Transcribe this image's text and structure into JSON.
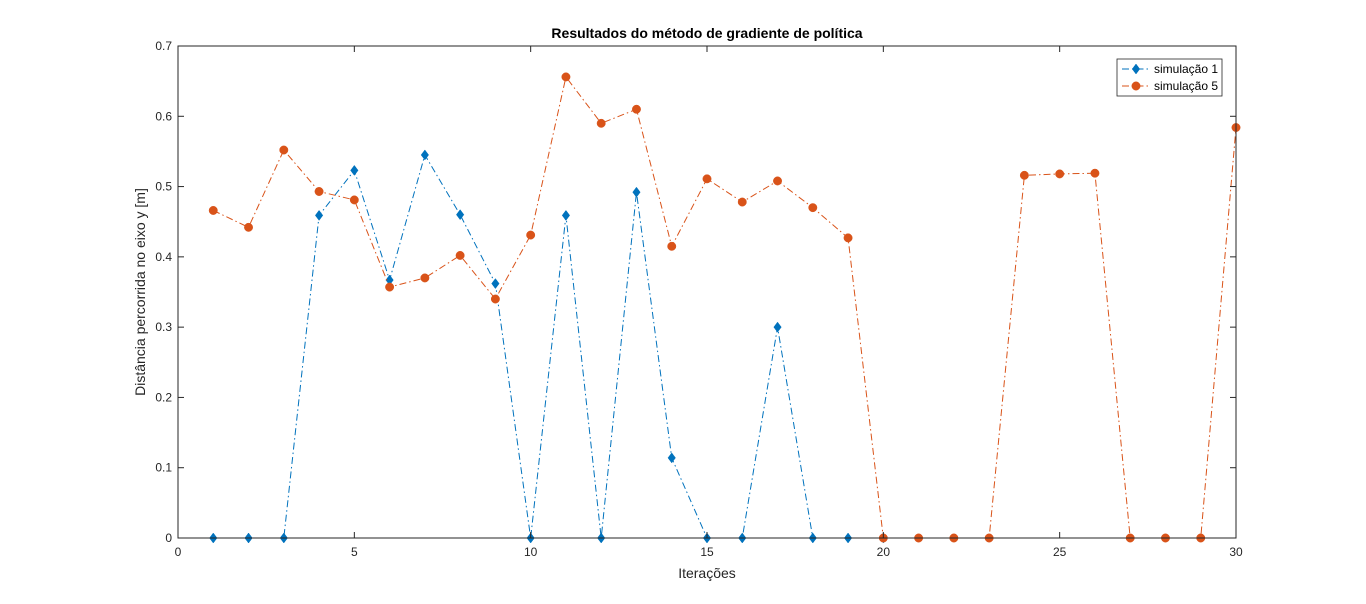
{
  "chart_data": {
    "type": "line",
    "title": "Resultados do método de gradiente de política",
    "xlabel": "Iterações",
    "ylabel": "Distância percorrida no eixo y [m]",
    "xlim": [
      0,
      30
    ],
    "ylim": [
      0,
      0.7
    ],
    "x_ticks": [
      "0",
      "5",
      "10",
      "15",
      "20",
      "25",
      "30"
    ],
    "y_ticks": [
      "0",
      "0.1",
      "0.2",
      "0.3",
      "0.4",
      "0.5",
      "0.6",
      "0.7"
    ],
    "grid": false,
    "legend_position": "top-right",
    "series": [
      {
        "name": "simulação 1",
        "color": "#0072BD",
        "marker": "diamond",
        "line_style": "dash-dot",
        "x": [
          1,
          2,
          3,
          4,
          5,
          6,
          7,
          8,
          9,
          10,
          11,
          12,
          13,
          14,
          15,
          16,
          17,
          18,
          19,
          20
        ],
        "y": [
          0,
          0,
          0,
          0.459,
          0.523,
          0.367,
          0.545,
          0.46,
          0.362,
          0,
          0.459,
          0,
          0.492,
          0.114,
          0,
          0,
          0.3,
          0,
          0,
          0
        ]
      },
      {
        "name": "simulação 5",
        "color": "#D95319",
        "marker": "circle",
        "line_style": "dash-dot",
        "x": [
          1,
          2,
          3,
          4,
          5,
          6,
          7,
          8,
          9,
          10,
          11,
          12,
          13,
          14,
          15,
          16,
          17,
          18,
          19,
          20,
          21,
          22,
          23,
          24,
          25,
          26,
          27,
          28,
          29,
          30
        ],
        "y": [
          0.466,
          0.442,
          0.552,
          0.493,
          0.481,
          0.357,
          0.37,
          0.402,
          0.34,
          0.431,
          0.656,
          0.59,
          0.61,
          0.415,
          0.511,
          0.478,
          0.508,
          0.47,
          0.427,
          0,
          0,
          0,
          0,
          0.516,
          0.518,
          0.519,
          0,
          0,
          0,
          0.584
        ]
      }
    ]
  }
}
